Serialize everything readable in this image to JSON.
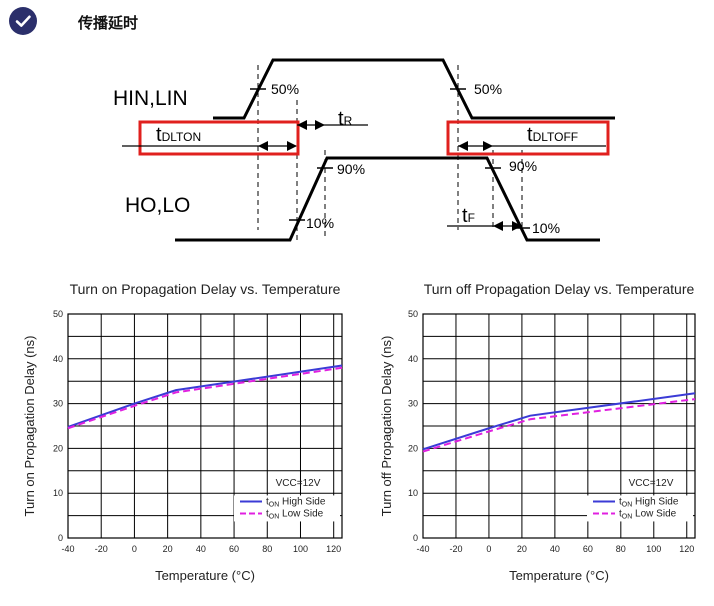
{
  "header": {
    "title": "传播延时",
    "icon": "check-icon",
    "badge_color": "#2b2f6b"
  },
  "timing_diagram": {
    "signal_in_label": "HIN,LIN",
    "signal_out_label": "HO,LO",
    "in_rise_pct": "50%",
    "in_fall_pct": "50%",
    "out_rise_high_pct": "90%",
    "out_rise_low_pct": "10%",
    "out_fall_high_pct": "90%",
    "out_fall_low_pct": "10%",
    "t_dlton": {
      "main": "t",
      "sub": "DLTON"
    },
    "t_dltoff": {
      "main": "t",
      "sub": "DLTOFF"
    },
    "t_r": {
      "main": "t",
      "sub": "R"
    },
    "t_f": {
      "main": "t",
      "sub": "F"
    },
    "highlight_color": "#e0201e"
  },
  "chart_data": [
    {
      "type": "line",
      "title": "Turn on Propagation Delay vs. Temperature",
      "xlabel": "Temperature (°C)",
      "ylabel": "Turn on Propagation Delay (ns)",
      "xlim": [
        -40,
        125
      ],
      "ylim": [
        0,
        50
      ],
      "x_ticks": [
        -40,
        -20,
        0,
        20,
        40,
        60,
        80,
        100,
        120
      ],
      "y_ticks": [
        0,
        10,
        20,
        30,
        40,
        50
      ],
      "grid": true,
      "annotation": "VCC=12V",
      "legend_position": "bottom-right",
      "series": [
        {
          "name": "tON High Side",
          "legend_main": "t",
          "legend_sub": "ON",
          "legend_text": " High Side",
          "color": "#3b3bd6",
          "style": "solid",
          "x": [
            -40,
            0,
            25,
            125
          ],
          "y": [
            24.8,
            30.0,
            33.0,
            38.5
          ]
        },
        {
          "name": "tON Low Side",
          "legend_main": "t",
          "legend_sub": "ON",
          "legend_text": " Low Side",
          "color": "#e020e0",
          "style": "dashed",
          "x": [
            -40,
            0,
            25,
            125
          ],
          "y": [
            24.5,
            29.5,
            32.5,
            38.0
          ]
        }
      ]
    },
    {
      "type": "line",
      "title": "Turn off Propagation Delay vs. Temperature",
      "xlabel": "Temperature (°C)",
      "ylabel": "Turn off Propagation Delay (ns)",
      "xlim": [
        -40,
        125
      ],
      "ylim": [
        0,
        50
      ],
      "x_ticks": [
        -40,
        -20,
        0,
        20,
        40,
        60,
        80,
        100,
        120
      ],
      "y_ticks": [
        0,
        10,
        20,
        30,
        40,
        50
      ],
      "grid": true,
      "annotation": "VCC=12V",
      "legend_position": "bottom-right",
      "series": [
        {
          "name": "tON High Side",
          "legend_main": "t",
          "legend_sub": "ON",
          "legend_text": " High Side",
          "color": "#3b3bd6",
          "style": "solid",
          "x": [
            -40,
            0,
            25,
            125
          ],
          "y": [
            19.8,
            24.5,
            27.3,
            32.3
          ]
        },
        {
          "name": "tON Low Side",
          "legend_main": "t",
          "legend_sub": "ON",
          "legend_text": " Low Side",
          "color": "#e020e0",
          "style": "dashed",
          "x": [
            -40,
            0,
            25,
            125
          ],
          "y": [
            19.3,
            23.8,
            26.5,
            31.0
          ]
        }
      ]
    }
  ]
}
